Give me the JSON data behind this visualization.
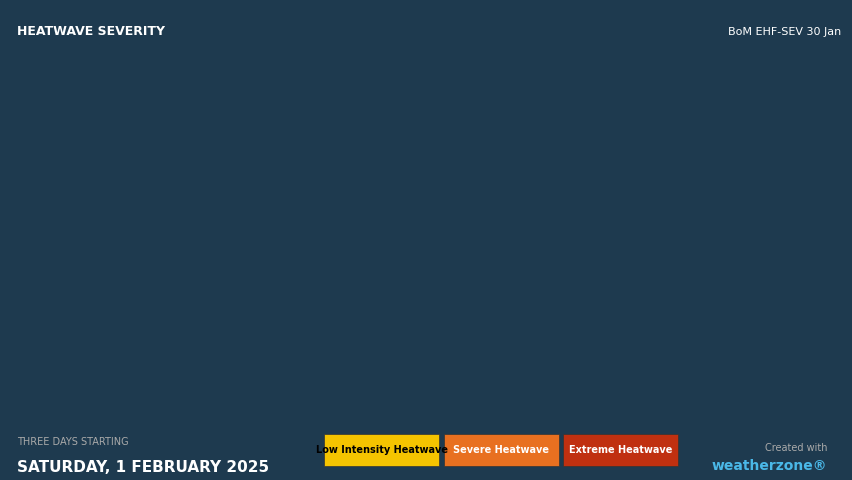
{
  "title_left": "HEATWAVE SEVERITY",
  "title_right": "BoM EHF-SEV 30 Jan",
  "date_line1": "THREE DAYS STARTING",
  "date_line2": "SATURDAY, 1 FEBRUARY 2025",
  "credit": "Created with\nweatherzone®",
  "legend": [
    {
      "label": "Low Intensity Heatwave",
      "color": "#F5C400"
    },
    {
      "label": "Severe Heatwave",
      "color": "#E87020"
    },
    {
      "label": "Extreme Heatwave",
      "color": "#C03010"
    }
  ],
  "background_color": "#1e3a4f",
  "title_box_color": "#2a4a60",
  "title_text_color": "#ffffff",
  "map_extent": [
    112,
    155,
    -44,
    -10
  ],
  "figsize": [
    8.53,
    4.8
  ],
  "dpi": 100
}
